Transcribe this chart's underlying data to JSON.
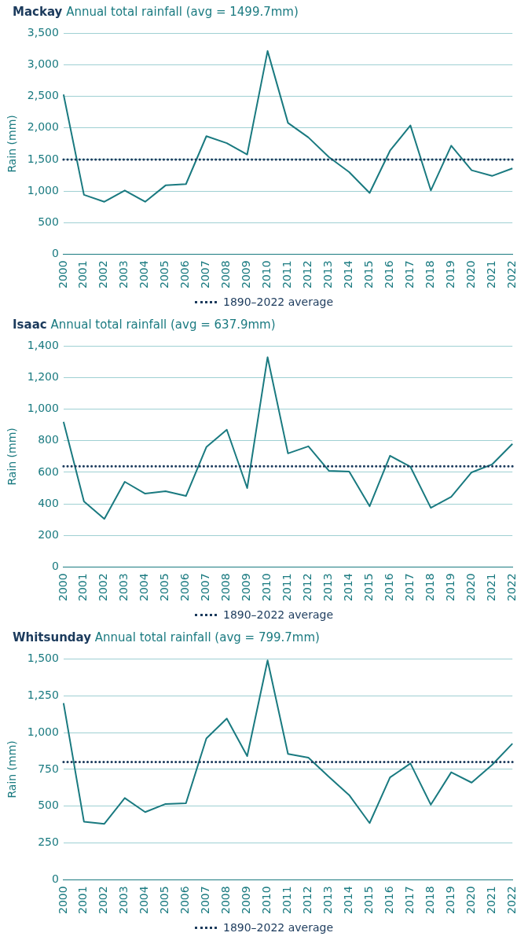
{
  "chart_data": [
    {
      "type": "line",
      "title": "Mackay",
      "subtitle": "Annual total rainfall (avg = 1499.7mm)",
      "ylabel": "Rain (mm)",
      "categories": [
        "2000",
        "2001",
        "2002",
        "2003",
        "2004",
        "2005",
        "2006",
        "2007",
        "2008",
        "2009",
        "2010",
        "2011",
        "2012",
        "2013",
        "2014",
        "2015",
        "2016",
        "2017",
        "2018",
        "2019",
        "2020",
        "2021",
        "2022"
      ],
      "series": [
        {
          "color": "#1a7a80",
          "values": [
            2530,
            940,
            830,
            1010,
            830,
            1090,
            1110,
            1870,
            1760,
            1580,
            3220,
            2080,
            1850,
            1540,
            1300,
            970,
            1640,
            2040,
            1010,
            1720,
            1330,
            1240,
            1360
          ]
        }
      ],
      "ylim": [
        0,
        3500
      ],
      "yticks": [
        {
          "value": 0,
          "label": "0"
        },
        {
          "value": 500,
          "label": "500"
        },
        {
          "value": 1000,
          "label": "1,000"
        },
        {
          "value": 1500,
          "label": "1,500"
        },
        {
          "value": 2000,
          "label": "2,000"
        },
        {
          "value": 2500,
          "label": "2,500"
        },
        {
          "value": 3000,
          "label": "3,000"
        },
        {
          "value": 3500,
          "label": "3,500"
        }
      ],
      "ref_lines": [
        {
          "axis": "y",
          "value": 1499.7,
          "label": "1890–2022 average",
          "color": "#1b3a5c",
          "line_style": "dotted"
        }
      ],
      "grid": "y",
      "legend": "bottom",
      "marker": "none",
      "line_style": "solid"
    },
    {
      "type": "line",
      "title": "Isaac",
      "subtitle": "Annual total rainfall (avg = 637.9mm)",
      "ylabel": "Rain (mm)",
      "categories": [
        "2000",
        "2001",
        "2002",
        "2003",
        "2004",
        "2005",
        "2006",
        "2007",
        "2008",
        "2009",
        "2010",
        "2011",
        "2012",
        "2013",
        "2014",
        "2015",
        "2016",
        "2017",
        "2018",
        "2019",
        "2020",
        "2021",
        "2022"
      ],
      "series": [
        {
          "color": "#1a7a80",
          "values": [
            920,
            415,
            305,
            540,
            465,
            480,
            450,
            760,
            870,
            500,
            1330,
            720,
            765,
            610,
            605,
            385,
            705,
            635,
            375,
            445,
            600,
            650,
            780
          ]
        }
      ],
      "ylim": [
        0,
        1400
      ],
      "yticks": [
        {
          "value": 0,
          "label": "0"
        },
        {
          "value": 200,
          "label": "200"
        },
        {
          "value": 400,
          "label": "400"
        },
        {
          "value": 600,
          "label": "600"
        },
        {
          "value": 800,
          "label": "800"
        },
        {
          "value": 1000,
          "label": "1,000"
        },
        {
          "value": 1200,
          "label": "1,200"
        },
        {
          "value": 1400,
          "label": "1,400"
        }
      ],
      "ref_lines": [
        {
          "axis": "y",
          "value": 637.9,
          "label": "1890–2022 average",
          "color": "#1b3a5c",
          "line_style": "dotted"
        }
      ],
      "grid": "y",
      "legend": "bottom",
      "marker": "none",
      "line_style": "solid"
    },
    {
      "type": "line",
      "title": "Whitsunday",
      "subtitle": "Annual total rainfall (avg = 799.7mm)",
      "ylabel": "Rain (mm)",
      "categories": [
        "2000",
        "2001",
        "2002",
        "2003",
        "2004",
        "2005",
        "2006",
        "2007",
        "2008",
        "2009",
        "2010",
        "2011",
        "2012",
        "2013",
        "2014",
        "2015",
        "2016",
        "2017",
        "2018",
        "2019",
        "2020",
        "2021",
        "2022"
      ],
      "series": [
        {
          "color": "#1a7a80",
          "values": [
            1200,
            395,
            380,
            555,
            460,
            515,
            520,
            960,
            1095,
            840,
            1490,
            855,
            830,
            700,
            575,
            385,
            695,
            790,
            510,
            730,
            660,
            780,
            925
          ]
        }
      ],
      "ylim": [
        0,
        1500
      ],
      "yticks": [
        {
          "value": 0,
          "label": "0"
        },
        {
          "value": 250,
          "label": "250"
        },
        {
          "value": 500,
          "label": "500"
        },
        {
          "value": 750,
          "label": "750"
        },
        {
          "value": 1000,
          "label": "1,000"
        },
        {
          "value": 1250,
          "label": "1,250"
        },
        {
          "value": 1500,
          "label": "1,500"
        }
      ],
      "ref_lines": [
        {
          "axis": "y",
          "value": 799.7,
          "label": "1890–2022 average",
          "color": "#1b3a5c",
          "line_style": "dotted"
        }
      ],
      "grid": "y",
      "legend": "bottom",
      "marker": "none",
      "line_style": "solid"
    }
  ]
}
